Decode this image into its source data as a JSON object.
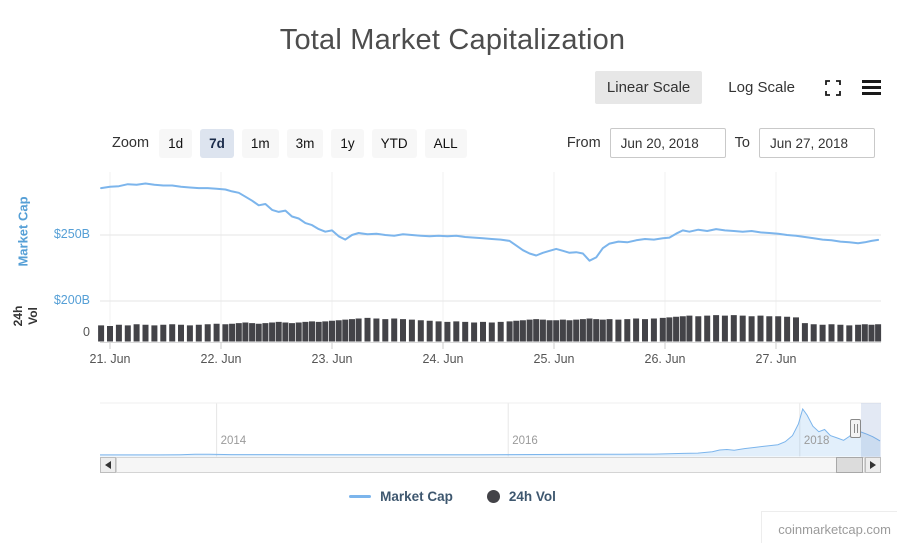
{
  "header": {
    "title": "Total Market Capitalization"
  },
  "scale_toggle": {
    "linear": "Linear Scale",
    "log": "Log Scale",
    "selected": "Linear Scale"
  },
  "icons": {
    "fullscreen": "expand-corners",
    "menu": "hamburger",
    "scroll_left": "triangle-left",
    "scroll_right": "triangle-right"
  },
  "zoom": {
    "label": "Zoom",
    "buttons": [
      "1d",
      "7d",
      "1m",
      "3m",
      "1y",
      "YTD",
      "ALL"
    ],
    "selected": "7d"
  },
  "range": {
    "from_label": "From",
    "from_value": "Jun 20, 2018",
    "to_label": "To",
    "to_value": "Jun 27, 2018"
  },
  "legend": {
    "items": [
      {
        "label": "Market Cap",
        "marker": "line",
        "color": "#7cb5ec"
      },
      {
        "label": "24h Vol",
        "marker": "circle",
        "color": "#434348"
      }
    ]
  },
  "watermark": {
    "text": "coinmarketcap.com"
  },
  "colors": {
    "market_cap_line": "#7cb5ec",
    "volume_bars": "#434348",
    "axis_label_blue": "#559fd6",
    "selected_zoom_bg": "#dde4ef",
    "selected_scale_bg": "#e7e7e7",
    "grid": "#e6e6e6",
    "legend_text": "#3e576f"
  },
  "chart_data": {
    "type": "line",
    "title": "Total Market Capitalization",
    "unit": "USD billions",
    "x_unit": "day of June 2018",
    "x": [
      20.92,
      21.0,
      21.08,
      21.16,
      21.24,
      21.32,
      21.4,
      21.48,
      21.56,
      21.64,
      21.72,
      21.8,
      21.88,
      21.96,
      22.04,
      22.1,
      22.16,
      22.22,
      22.28,
      22.34,
      22.4,
      22.46,
      22.52,
      22.58,
      22.64,
      22.7,
      22.76,
      22.82,
      22.88,
      22.94,
      23.0,
      23.06,
      23.12,
      23.18,
      23.24,
      23.32,
      23.4,
      23.48,
      23.56,
      23.64,
      23.72,
      23.8,
      23.88,
      23.96,
      24.04,
      24.12,
      24.2,
      24.28,
      24.36,
      24.44,
      24.52,
      24.6,
      24.66,
      24.72,
      24.78,
      24.84,
      24.9,
      24.96,
      25.02,
      25.08,
      25.14,
      25.2,
      25.26,
      25.32,
      25.38,
      25.44,
      25.5,
      25.58,
      25.66,
      25.74,
      25.82,
      25.9,
      25.98,
      26.04,
      26.1,
      26.16,
      26.22,
      26.3,
      26.38,
      26.46,
      26.54,
      26.62,
      26.7,
      26.78,
      26.86,
      26.94,
      27.02,
      27.1,
      27.18,
      27.26,
      27.34,
      27.42,
      27.5,
      27.58,
      27.66,
      27.74,
      27.8,
      27.86,
      27.92
    ],
    "series": [
      {
        "name": "Market Cap",
        "type": "line",
        "color": "#7cb5ec",
        "values": [
          285.5,
          286.5,
          287,
          288.5,
          288,
          289,
          288,
          287.5,
          287.5,
          286.5,
          286,
          285.5,
          285.5,
          285,
          284.5,
          283,
          282,
          279,
          276,
          272.5,
          273.5,
          269,
          267.5,
          268.5,
          264,
          262.5,
          259,
          257.5,
          254.5,
          252.5,
          253.5,
          249,
          246.5,
          250,
          251.5,
          250.5,
          251,
          250,
          249.5,
          250.5,
          250,
          249.5,
          249,
          249.5,
          249,
          249.5,
          248.5,
          248,
          247.5,
          247,
          246.5,
          245.5,
          242,
          238.5,
          236,
          234.5,
          236.5,
          238,
          239.5,
          238,
          236.5,
          237,
          236,
          230.5,
          233,
          240,
          243.5,
          245,
          244.5,
          246,
          247,
          246.5,
          247.5,
          248,
          251,
          253.5,
          252.5,
          254,
          253,
          254.5,
          253.5,
          253,
          252.5,
          253,
          252,
          251.5,
          251,
          250,
          249.5,
          248.5,
          247.5,
          246.5,
          246,
          245,
          244.5,
          243.8,
          244.5,
          245.5,
          246.3
        ]
      },
      {
        "name": "24h Vol",
        "type": "column",
        "color": "#434348",
        "values": [
          14,
          13.5,
          14.5,
          14,
          15,
          14.5,
          14,
          14.5,
          15,
          14.5,
          14,
          14.5,
          15,
          15.5,
          15,
          15.5,
          16,
          16.5,
          16,
          15.5,
          16,
          16.5,
          17,
          16.5,
          16,
          16.5,
          17,
          17.5,
          17,
          17.5,
          18,
          18.5,
          19,
          19.5,
          20,
          20.5,
          20,
          19.5,
          20,
          19.5,
          19,
          18.5,
          18,
          17.5,
          17,
          17.5,
          17,
          16.5,
          17,
          16.5,
          17,
          17.5,
          18,
          18.5,
          19,
          19.5,
          19,
          18.5,
          18.5,
          19,
          18.5,
          19,
          19.5,
          20,
          19.5,
          19,
          19.5,
          19,
          19.5,
          20,
          19.5,
          20,
          20.5,
          21,
          21.5,
          22,
          22.5,
          22,
          22.5,
          23,
          22.5,
          23,
          22.5,
          22,
          22.5,
          22,
          22,
          21.5,
          21,
          16,
          15,
          14.5,
          15,
          14.5,
          14,
          14.5,
          15,
          14.5,
          15
        ]
      }
    ],
    "x_ticks": [
      {
        "label": "21. Jun",
        "day": 21
      },
      {
        "label": "22. Jun",
        "day": 22
      },
      {
        "label": "23. Jun",
        "day": 23
      },
      {
        "label": "24. Jun",
        "day": 24
      },
      {
        "label": "25. Jun",
        "day": 25
      },
      {
        "label": "26. Jun",
        "day": 26
      },
      {
        "label": "27. Jun",
        "day": 27
      }
    ],
    "y_axis_market_cap": {
      "title": "Market Cap",
      "unit": "USD",
      "ticks": [
        {
          "label": "$250B",
          "value": 250
        },
        {
          "label": "$200B",
          "value": 200
        }
      ]
    },
    "y_axis_volume": {
      "title": "24h Vol",
      "ticks": [
        {
          "label": "0",
          "value": 0
        }
      ]
    },
    "navigator": {
      "unit": "USD billions",
      "x": [
        2013.2,
        2013.4,
        2013.6,
        2013.75,
        2013.85,
        2013.95,
        2014.0,
        2014.1,
        2014.25,
        2014.4,
        2014.6,
        2014.8,
        2015.0,
        2015.2,
        2015.4,
        2015.6,
        2015.8,
        2016.0,
        2016.2,
        2016.4,
        2016.6,
        2016.8,
        2017.0,
        2017.1,
        2017.2,
        2017.3,
        2017.4,
        2017.45,
        2017.5,
        2017.55,
        2017.62,
        2017.7,
        2017.78,
        2017.85,
        2017.9,
        2017.95,
        2017.99,
        2018.02,
        2018.05,
        2018.09,
        2018.13,
        2018.17,
        2018.21,
        2018.26,
        2018.3,
        2018.34,
        2018.38,
        2018.42,
        2018.46,
        2018.5,
        2018.53,
        2018.55
      ],
      "values": [
        1,
        1.2,
        1.8,
        6,
        12,
        14,
        11,
        8,
        7,
        6.5,
        5.5,
        5,
        4.5,
        4,
        4.2,
        4.5,
        5,
        7,
        8.5,
        10,
        12,
        14,
        17,
        22,
        28,
        35,
        60,
        90,
        100,
        85,
        115,
        140,
        165,
        185,
        240,
        350,
        560,
        830,
        720,
        520,
        420,
        460,
        350,
        305,
        265,
        335,
        430,
        415,
        375,
        330,
        285,
        255
      ],
      "labels": [
        {
          "label": "2014",
          "year": 2014
        },
        {
          "label": "2016",
          "year": 2016
        },
        {
          "label": "2018",
          "year": 2018
        }
      ]
    }
  }
}
